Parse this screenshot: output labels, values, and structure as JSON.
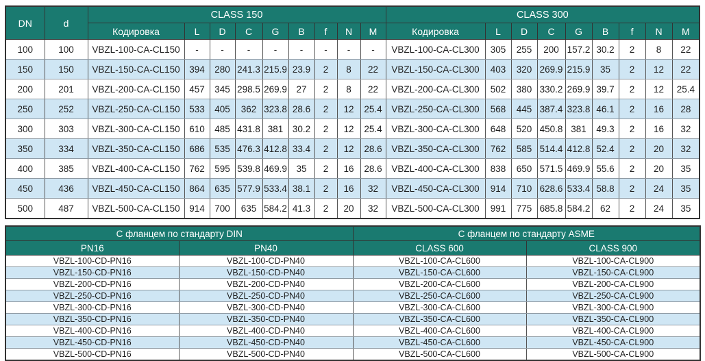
{
  "colors": {
    "header_bg": "#1a7a70",
    "header_text": "#ffffff",
    "row_alt_bg": "#cfe6f4",
    "row_bg": "#ffffff",
    "border_dark": "#333333",
    "cell_text": "#1f1f1f"
  },
  "dimensions_table": {
    "col_dn": "DN",
    "col_d": "d",
    "groups": [
      {
        "label": "CLASS 150",
        "code_header": "Кодировка",
        "dim_headers": [
          "L",
          "D",
          "C",
          "G",
          "B",
          "f",
          "N",
          "M"
        ]
      },
      {
        "label": "CLASS 300",
        "code_header": "Кодировка",
        "dim_headers": [
          "L",
          "D",
          "C",
          "G",
          "B",
          "f",
          "N",
          "M"
        ]
      }
    ],
    "rows": [
      {
        "dn": "100",
        "d": "100",
        "class150": {
          "code": "VBZL-100-CA-CL150",
          "values": [
            "-",
            "-",
            "-",
            "-",
            "-",
            "-",
            "-",
            "-"
          ]
        },
        "class300": {
          "code": "VBZL-100-CA-CL300",
          "values": [
            "305",
            "255",
            "200",
            "157.2",
            "30.2",
            "2",
            "8",
            "22"
          ]
        }
      },
      {
        "dn": "150",
        "d": "150",
        "class150": {
          "code": "VBZL-150-CA-CL150",
          "values": [
            "394",
            "280",
            "241.3",
            "215.9",
            "23.9",
            "2",
            "8",
            "22"
          ]
        },
        "class300": {
          "code": "VBZL-150-CA-CL300",
          "values": [
            "403",
            "320",
            "269.9",
            "215.9",
            "35",
            "2",
            "12",
            "22"
          ]
        }
      },
      {
        "dn": "200",
        "d": "201",
        "class150": {
          "code": "VBZL-200-CA-CL150",
          "values": [
            "457",
            "345",
            "298.5",
            "269.9",
            "27",
            "2",
            "8",
            "22"
          ]
        },
        "class300": {
          "code": "VBZL-200-CA-CL300",
          "values": [
            "502",
            "380",
            "330.2",
            "269.9",
            "39.7",
            "2",
            "12",
            "25.4"
          ]
        }
      },
      {
        "dn": "250",
        "d": "252",
        "class150": {
          "code": "VBZL-250-CA-CL150",
          "values": [
            "533",
            "405",
            "362",
            "323.8",
            "28.6",
            "2",
            "12",
            "25.4"
          ]
        },
        "class300": {
          "code": "VBZL-250-CA-CL300",
          "values": [
            "568",
            "445",
            "387.4",
            "323.8",
            "46.1",
            "2",
            "16",
            "28"
          ]
        }
      },
      {
        "dn": "300",
        "d": "303",
        "class150": {
          "code": "VBZL-300-CA-CL150",
          "values": [
            "610",
            "485",
            "431.8",
            "381",
            "30.2",
            "2",
            "12",
            "25.4"
          ]
        },
        "class300": {
          "code": "VBZL-300-CA-CL300",
          "values": [
            "648",
            "520",
            "450.8",
            "381",
            "49.3",
            "2",
            "16",
            "32"
          ]
        }
      },
      {
        "dn": "350",
        "d": "334",
        "class150": {
          "code": "VBZL-350-CA-CL150",
          "values": [
            "686",
            "535",
            "476.3",
            "412.8",
            "33.4",
            "2",
            "12",
            "28.6"
          ]
        },
        "class300": {
          "code": "VBZL-350-CA-CL300",
          "values": [
            "762",
            "585",
            "514.4",
            "412.8",
            "52.4",
            "2",
            "20",
            "32"
          ]
        }
      },
      {
        "dn": "400",
        "d": "385",
        "class150": {
          "code": "VBZL-400-CA-CL150",
          "values": [
            "762",
            "595",
            "539.8",
            "469.9",
            "35",
            "2",
            "16",
            "28.6"
          ]
        },
        "class300": {
          "code": "VBZL-400-CA-CL300",
          "values": [
            "838",
            "650",
            "571.5",
            "469.9",
            "55.6",
            "2",
            "20",
            "35"
          ]
        }
      },
      {
        "dn": "450",
        "d": "436",
        "class150": {
          "code": "VBZL-450-CA-CL150",
          "values": [
            "864",
            "635",
            "577.9",
            "533.4",
            "38.1",
            "2",
            "16",
            "32"
          ]
        },
        "class300": {
          "code": "VBZL-450-CA-CL300",
          "values": [
            "914",
            "710",
            "628.6",
            "533.4",
            "58.8",
            "2",
            "24",
            "35"
          ]
        }
      },
      {
        "dn": "500",
        "d": "487",
        "class150": {
          "code": "VBZL-500-CA-CL150",
          "values": [
            "914",
            "700",
            "635",
            "584.2",
            "41.3",
            "2",
            "20",
            "32"
          ]
        },
        "class300": {
          "code": "VBZL-500-CA-CL300",
          "values": [
            "991",
            "775",
            "685.8",
            "584.2",
            "62",
            "2",
            "24",
            "35"
          ]
        }
      }
    ]
  },
  "flange_table": {
    "groups": [
      {
        "label": "С фланцем по стандарту DIN",
        "cols": [
          "PN16",
          "PN40"
        ]
      },
      {
        "label": "С фланцем по стандарту ASME",
        "cols": [
          "CLASS 600",
          "CLASS 900"
        ]
      }
    ],
    "rows": [
      [
        "VBZL-100-CD-PN16",
        "VBZL-100-CD-PN40",
        "VBZL-100-CA-CL600",
        "VBZL-100-CA-CL900"
      ],
      [
        "VBZL-150-CD-PN16",
        "VBZL-150-CD-PN40",
        "VBZL-150-CA-CL600",
        "VBZL-150-CA-CL900"
      ],
      [
        "VBZL-200-CD-PN16",
        "VBZL-200-CD-PN40",
        "VBZL-200-CA-CL600",
        "VBZL-200-CA-CL900"
      ],
      [
        "VBZL-250-CD-PN16",
        "VBZL-250-CD-PN40",
        "VBZL-250-CA-CL600",
        "VBZL-250-CA-CL900"
      ],
      [
        "VBZL-300-CD-PN16",
        "VBZL-300-CD-PN40",
        "VBZL-300-CA-CL600",
        "VBZL-300-CA-CL900"
      ],
      [
        "VBZL-350-CD-PN16",
        "VBZL-350-CD-PN40",
        "VBZL-350-CA-CL600",
        "VBZL-350-CA-CL900"
      ],
      [
        "VBZL-400-CD-PN16",
        "VBZL-400-CD-PN40",
        "VBZL-400-CA-CL600",
        "VBZL-400-CA-CL900"
      ],
      [
        "VBZL-450-CD-PN16",
        "VBZL-450-CD-PN40",
        "VBZL-450-CA-CL600",
        "VBZL-450-CA-CL900"
      ],
      [
        "VBZL-500-CD-PN16",
        "VBZL-500-CD-PN40",
        "VBZL-500-CA-CL600",
        "VBZL-500-CA-CL900"
      ]
    ]
  }
}
